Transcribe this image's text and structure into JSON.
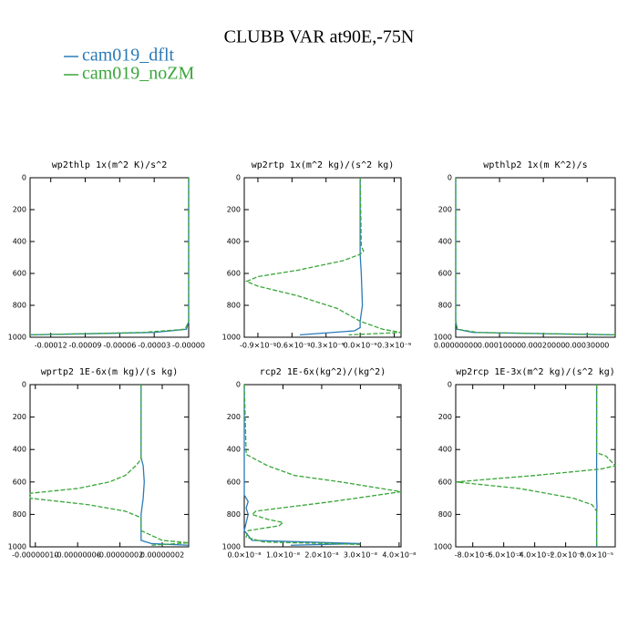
{
  "title": "CLUBB VAR at90E,-75N",
  "legend": [
    {
      "name": "cam019_dflt",
      "color": "#2a7ab8"
    },
    {
      "name": "cam019_noZM",
      "color": "#3aa63a"
    }
  ],
  "chart_data": [
    {
      "type": "line",
      "title": "wp2thlp   1x(m^2 K)/s^2",
      "ylim": [
        0,
        1000
      ],
      "y_inverted": true,
      "yticks": [
        0,
        200,
        400,
        600,
        800,
        1000
      ],
      "xlim": [
        -0.000138,
        0
      ],
      "xticks": [
        -0.00012,
        -9e-05,
        -6e-05,
        -3e-05,
        {
          "value": 0,
          "label": "-0.00000"
        }
      ],
      "series": [
        {
          "color": "#2a7ab8",
          "y": [
            0,
            500,
            900,
            950,
            970,
            985
          ],
          "values": [
            0,
            0,
            0,
            -2e-06,
            -3e-05,
            -0.000138
          ]
        },
        {
          "color": "#3aa63a",
          "y": [
            0,
            500,
            900,
            950,
            970,
            985
          ],
          "values": [
            0,
            0,
            0,
            -3e-06,
            -4e-05,
            -0.000138
          ]
        }
      ]
    },
    {
      "type": "line",
      "title": "wp2rtp   1x(m^2 kg)/(s^2 kg)",
      "ylim": [
        0,
        1000
      ],
      "y_inverted": true,
      "yticks": [
        0,
        200,
        400,
        600,
        800,
        1000
      ],
      "xlim": [
        -1.02e-09,
        3.6e-10
      ],
      "xticks": [
        {
          "value": -9e-10,
          "label": "-0.9×10⁻⁹"
        },
        {
          "value": -6e-10,
          "label": "-0.6×10⁻⁹"
        },
        {
          "value": -3e-10,
          "label": "-0.3×10⁻⁹"
        },
        {
          "value": 0,
          "label": "0.0×10⁻⁹"
        },
        {
          "value": 3e-10,
          "label": "0.3×10⁻⁹"
        }
      ],
      "series": [
        {
          "color": "#2a7ab8",
          "y": [
            0,
            400,
            450,
            480,
            600,
            800,
            900,
            940,
            960,
            985
          ],
          "values": [
            0,
            0,
            0,
            0,
            1e-11,
            2e-11,
            0,
            0,
            -5e-11,
            -5.3e-10
          ]
        },
        {
          "color": "#3aa63a",
          "y": [
            0,
            430,
            460,
            480,
            520,
            580,
            620,
            650,
            680,
            740,
            820,
            900,
            950,
            970,
            985
          ],
          "values": [
            0,
            1e-11,
            3e-11,
            0,
            -1.5e-10,
            -5.5e-10,
            -9e-10,
            -1e-09,
            -9e-10,
            -5.5e-10,
            -2e-10,
            0,
            2e-10,
            3.6e-10,
            -1e-10
          ]
        }
      ]
    },
    {
      "type": "line",
      "title": "wpthlp2   1x(m K^2)/s",
      "ylim": [
        0,
        1000
      ],
      "y_inverted": true,
      "yticks": [
        0,
        200,
        400,
        600,
        800,
        1000
      ],
      "xlim": [
        0,
        0.000364
      ],
      "xticks": [
        {
          "value": 0,
          "label": "0.00000000"
        },
        {
          "value": 0.0001,
          "label": "0.00010000"
        },
        {
          "value": 0.0002,
          "label": "0.00020000"
        },
        {
          "value": 0.0003,
          "label": "0.00030000"
        }
      ],
      "series": [
        {
          "color": "#2a7ab8",
          "y": [
            0,
            500,
            900,
            950,
            970,
            985
          ],
          "values": [
            0,
            0,
            0,
            3e-06,
            4e-05,
            0.000364
          ]
        },
        {
          "color": "#3aa63a",
          "y": [
            0,
            500,
            900,
            950,
            970,
            985
          ],
          "values": [
            0,
            0,
            0,
            4e-06,
            5e-05,
            0.000364
          ]
        }
      ]
    },
    {
      "type": "line",
      "title": "wprtp2   1E-6x(m kg)/(s kg)",
      "ylim": [
        0,
        1000
      ],
      "y_inverted": true,
      "yticks": [
        0,
        200,
        400,
        600,
        800,
        1000
      ],
      "xlim": [
        -1.05e-07,
        4.5e-08
      ],
      "xticks": [
        {
          "value": -1e-07,
          "label": "-0.00000010"
        },
        {
          "value": -6e-08,
          "label": "-0.00000006"
        },
        {
          "value": -2e-08,
          "label": "-0.00000002"
        },
        {
          "value": 2e-08,
          "label": "0.00000002"
        }
      ],
      "series": [
        {
          "color": "#2a7ab8",
          "y": [
            0,
            450,
            500,
            600,
            700,
            800,
            900,
            960,
            980,
            990
          ],
          "values": [
            0,
            0,
            2e-09,
            3e-09,
            2e-09,
            0,
            0,
            0,
            1e-08,
            4.5e-08
          ]
        },
        {
          "color": "#3aa63a",
          "y": [
            0,
            460,
            500,
            560,
            600,
            640,
            670,
            700,
            740,
            780,
            820,
            900,
            960,
            975,
            990
          ],
          "values": [
            0,
            0,
            -5e-09,
            -1.5e-08,
            -3e-08,
            -6e-08,
            -1.05e-07,
            -1.05e-07,
            -5e-08,
            -1.5e-08,
            0,
            0,
            2e-08,
            4.5e-08,
            1e-08
          ]
        }
      ]
    },
    {
      "type": "line",
      "title": "rcp2   1E-6x(kg^2)/(kg^2)",
      "ylim": [
        0,
        1000
      ],
      "y_inverted": true,
      "yticks": [
        0,
        200,
        400,
        600,
        800,
        1000
      ],
      "xlim": [
        0,
        4.05e-08
      ],
      "xticks": [
        {
          "value": 0,
          "label": "0.0×10⁻⁸"
        },
        {
          "value": 1e-08,
          "label": "1.0×10⁻⁸"
        },
        {
          "value": 2e-08,
          "label": "2.0×10⁻⁸"
        },
        {
          "value": 3e-08,
          "label": "3.0×10⁻⁸"
        },
        {
          "value": 4e-08,
          "label": "4.0×10⁻⁸"
        }
      ],
      "series": [
        {
          "color": "#2a7ab8",
          "y": [
            0,
            680,
            720,
            760,
            800,
            900,
            960,
            980,
            990
          ],
          "values": [
            0,
            0,
            1e-09,
            5e-10,
            1e-09,
            0,
            2e-09,
            3e-08,
            1.2e-08
          ]
        },
        {
          "color": "#3aa63a",
          "y": [
            0,
            430,
            500,
            560,
            600,
            660,
            720,
            780,
            800,
            830,
            850,
            870,
            900,
            940,
            970,
            985
          ],
          "values": [
            0,
            5e-10,
            6e-09,
            1.3e-08,
            2.5e-08,
            4.05e-08,
            2.3e-08,
            3e-09,
            2e-09,
            6e-09,
            1e-08,
            9e-09,
            1e-09,
            5e-10,
            5e-09,
            3e-08
          ]
        }
      ]
    },
    {
      "type": "line",
      "title": "wp2rcp   1E-3x(m^2 kg)/(s^2 kg)",
      "ylim": [
        0,
        1000
      ],
      "y_inverted": true,
      "yticks": [
        0,
        200,
        400,
        600,
        800,
        1000
      ],
      "xlim": [
        -9.1e-05,
        1.2e-05
      ],
      "xticks": [
        {
          "value": -8e-05,
          "label": "-8.0×10⁻⁵"
        },
        {
          "value": -6e-05,
          "label": "-6.0×10⁻⁵"
        },
        {
          "value": -4e-05,
          "label": "-4.0×10⁻⁵"
        },
        {
          "value": -2e-05,
          "label": "-2.0×10⁻⁵"
        },
        {
          "value": 0,
          "label": "0.0×10⁻⁵"
        }
      ],
      "series": [
        {
          "color": "#2a7ab8",
          "y": [
            0,
            500,
            700,
            750,
            800,
            1000
          ],
          "values": [
            0,
            0,
            0,
            2e-07,
            0,
            0
          ]
        },
        {
          "color": "#3aa63a",
          "y": [
            0,
            420,
            440,
            500,
            520,
            560,
            600,
            640,
            700,
            740,
            780,
            1000
          ],
          "values": [
            0,
            0,
            6e-06,
            1.2e-05,
            3e-06,
            -4e-05,
            -9.1e-05,
            -5e-05,
            -1.5e-05,
            -3e-06,
            0,
            0
          ]
        }
      ]
    }
  ]
}
